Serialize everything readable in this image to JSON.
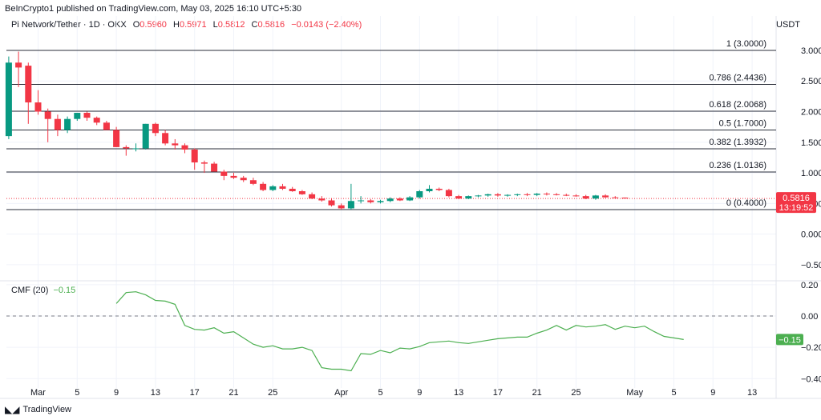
{
  "header": {
    "published": "BeInCrypto1 published on TradingView.com, May 03, 2025 16:10 UTC+5:30"
  },
  "legend": {
    "symbol": "Pi Network/Tether · 1D · OKX",
    "o_label": "O",
    "o_value": "0.5960",
    "h_label": "H",
    "h_value": "0.5971",
    "l_label": "L",
    "l_value": "0.5812",
    "c_label": "C",
    "c_value": "0.5816",
    "change": "−0.0143 (−2.40%)"
  },
  "currency": "USDT",
  "price_tag": {
    "value": "0.5816",
    "countdown": "13:19:52",
    "color": "#f23645"
  },
  "cmf": {
    "label": "CMF (20)",
    "value": "−0.15",
    "tag": "−0.15",
    "color": "#4caf50"
  },
  "footer": {
    "brand": "TradingView"
  },
  "colors": {
    "up": "#089981",
    "down": "#f23645",
    "cmf": "#4caf50"
  },
  "chart_data": [
    {
      "type": "candlestick",
      "title": "Pi Network/Tether · 1D · OKX",
      "ylim": [
        -0.75,
        3.3
      ],
      "y_ticks": [
        "3.0000",
        "2.5000",
        "2.0000",
        "1.5000",
        "1.0000",
        "0.5000",
        "0.0000",
        "−0.5000"
      ],
      "y_tick_values": [
        3,
        2.5,
        2,
        1.5,
        1,
        0.5,
        0,
        -0.5
      ],
      "x_ticks": [
        "Mar",
        "5",
        "9",
        "13",
        "17",
        "21",
        "25",
        "Apr",
        "5",
        "9",
        "13",
        "17",
        "21",
        "25",
        "May",
        "5",
        "9",
        "13"
      ],
      "x_tick_days": [
        0,
        4,
        8,
        12,
        16,
        20,
        24,
        31,
        35,
        39,
        43,
        47,
        51,
        55,
        61,
        65,
        69,
        73
      ],
      "start_day": -3,
      "fib_levels": [
        {
          "label": "1 (3.0000)",
          "value": 3.0
        },
        {
          "label": "0.786 (2.4436)",
          "value": 2.4436
        },
        {
          "label": "0.618 (2.0068)",
          "value": 2.0068
        },
        {
          "label": "0.5 (1.7000)",
          "value": 1.7
        },
        {
          "label": "0.382 (1.3932)",
          "value": 1.3932
        },
        {
          "label": "0.236 (1.0136)",
          "value": 1.0136
        },
        {
          "label": "0 (0.4000)",
          "value": 0.4
        }
      ],
      "candles": [
        [
          1.6,
          2.9,
          1.55,
          2.8
        ],
        [
          2.8,
          2.98,
          2.4,
          2.72
        ],
        [
          2.75,
          2.8,
          1.8,
          2.15
        ],
        [
          2.15,
          2.35,
          1.95,
          2.0
        ],
        [
          2.0,
          2.05,
          1.5,
          1.88
        ],
        [
          1.88,
          1.95,
          1.6,
          1.7
        ],
        [
          1.7,
          1.92,
          1.65,
          1.88
        ],
        [
          1.88,
          1.98,
          1.85,
          1.98
        ],
        [
          1.98,
          2.0,
          1.85,
          1.9
        ],
        [
          1.9,
          1.92,
          1.78,
          1.82
        ],
        [
          1.82,
          1.85,
          1.7,
          1.7
        ],
        [
          1.7,
          1.75,
          1.42,
          1.42
        ],
        [
          1.42,
          1.45,
          1.28,
          1.4
        ],
        [
          1.4,
          1.48,
          1.35,
          1.4
        ],
        [
          1.4,
          1.8,
          1.38,
          1.8
        ],
        [
          1.8,
          1.82,
          1.6,
          1.65
        ],
        [
          1.65,
          1.7,
          1.45,
          1.48
        ],
        [
          1.48,
          1.55,
          1.38,
          1.45
        ],
        [
          1.45,
          1.48,
          1.32,
          1.38
        ],
        [
          1.38,
          1.4,
          1.05,
          1.17
        ],
        [
          1.17,
          1.2,
          1.0,
          1.15
        ],
        [
          1.15,
          1.18,
          1.02,
          1.02
        ],
        [
          1.02,
          1.05,
          0.88,
          0.95
        ],
        [
          0.95,
          1.0,
          0.9,
          0.92
        ],
        [
          0.92,
          0.95,
          0.85,
          0.88
        ],
        [
          0.88,
          0.92,
          0.8,
          0.82
        ],
        [
          0.82,
          0.85,
          0.7,
          0.72
        ],
        [
          0.72,
          0.8,
          0.7,
          0.78
        ],
        [
          0.78,
          0.82,
          0.72,
          0.74
        ],
        [
          0.74,
          0.77,
          0.69,
          0.7
        ],
        [
          0.7,
          0.72,
          0.64,
          0.65
        ],
        [
          0.65,
          0.68,
          0.57,
          0.58
        ],
        [
          0.58,
          0.62,
          0.53,
          0.55
        ],
        [
          0.55,
          0.58,
          0.45,
          0.47
        ],
        [
          0.47,
          0.5,
          0.4,
          0.42
        ],
        [
          0.42,
          0.82,
          0.4,
          0.54
        ],
        [
          0.54,
          0.62,
          0.5,
          0.55
        ],
        [
          0.55,
          0.57,
          0.5,
          0.52
        ],
        [
          0.52,
          0.56,
          0.5,
          0.54
        ],
        [
          0.54,
          0.6,
          0.52,
          0.58
        ],
        [
          0.58,
          0.6,
          0.54,
          0.55
        ],
        [
          0.55,
          0.62,
          0.54,
          0.6
        ],
        [
          0.6,
          0.72,
          0.58,
          0.7
        ],
        [
          0.7,
          0.8,
          0.68,
          0.74
        ],
        [
          0.74,
          0.76,
          0.7,
          0.72
        ],
        [
          0.72,
          0.74,
          0.6,
          0.62
        ],
        [
          0.62,
          0.64,
          0.57,
          0.58
        ],
        [
          0.58,
          0.63,
          0.57,
          0.62
        ],
        [
          0.62,
          0.64,
          0.6,
          0.63
        ],
        [
          0.63,
          0.66,
          0.61,
          0.65
        ],
        [
          0.65,
          0.67,
          0.61,
          0.63
        ],
        [
          0.63,
          0.65,
          0.61,
          0.64
        ],
        [
          0.64,
          0.66,
          0.62,
          0.65
        ],
        [
          0.65,
          0.67,
          0.62,
          0.64
        ],
        [
          0.64,
          0.67,
          0.62,
          0.66
        ],
        [
          0.66,
          0.68,
          0.63,
          0.65
        ],
        [
          0.65,
          0.67,
          0.63,
          0.64
        ],
        [
          0.64,
          0.66,
          0.62,
          0.63
        ],
        [
          0.63,
          0.65,
          0.61,
          0.62
        ],
        [
          0.62,
          0.64,
          0.57,
          0.58
        ],
        [
          0.58,
          0.64,
          0.56,
          0.63
        ],
        [
          0.63,
          0.65,
          0.59,
          0.6
        ],
        [
          0.6,
          0.62,
          0.58,
          0.59
        ],
        [
          0.596,
          0.5971,
          0.5812,
          0.5816
        ]
      ]
    },
    {
      "type": "line",
      "title": "CMF (20)",
      "ylim": [
        -0.46,
        0.22
      ],
      "y_ticks": [
        "0.20",
        "0.00",
        "−0.20",
        "−0.40"
      ],
      "y_tick_values": [
        0.2,
        0.0,
        -0.2,
        -0.4
      ],
      "zero_line": 0.0,
      "start_day": 8,
      "series": [
        {
          "values": [
            0.08,
            0.15,
            0.155,
            0.135,
            0.1,
            0.095,
            0.075,
            -0.06,
            -0.085,
            -0.09,
            -0.075,
            -0.11,
            -0.1,
            -0.14,
            -0.18,
            -0.2,
            -0.19,
            -0.21,
            -0.21,
            -0.2,
            -0.22,
            -0.33,
            -0.34,
            -0.34,
            -0.35,
            -0.24,
            -0.245,
            -0.22,
            -0.235,
            -0.205,
            -0.21,
            -0.195,
            -0.17,
            -0.165,
            -0.16,
            -0.17,
            -0.175,
            -0.165,
            -0.155,
            -0.145,
            -0.14,
            -0.135,
            -0.135,
            -0.11,
            -0.09,
            -0.06,
            -0.09,
            -0.06,
            -0.07,
            -0.065,
            -0.055,
            -0.085,
            -0.065,
            -0.075,
            -0.065,
            -0.1,
            -0.13,
            -0.14,
            -0.15
          ]
        }
      ]
    }
  ]
}
